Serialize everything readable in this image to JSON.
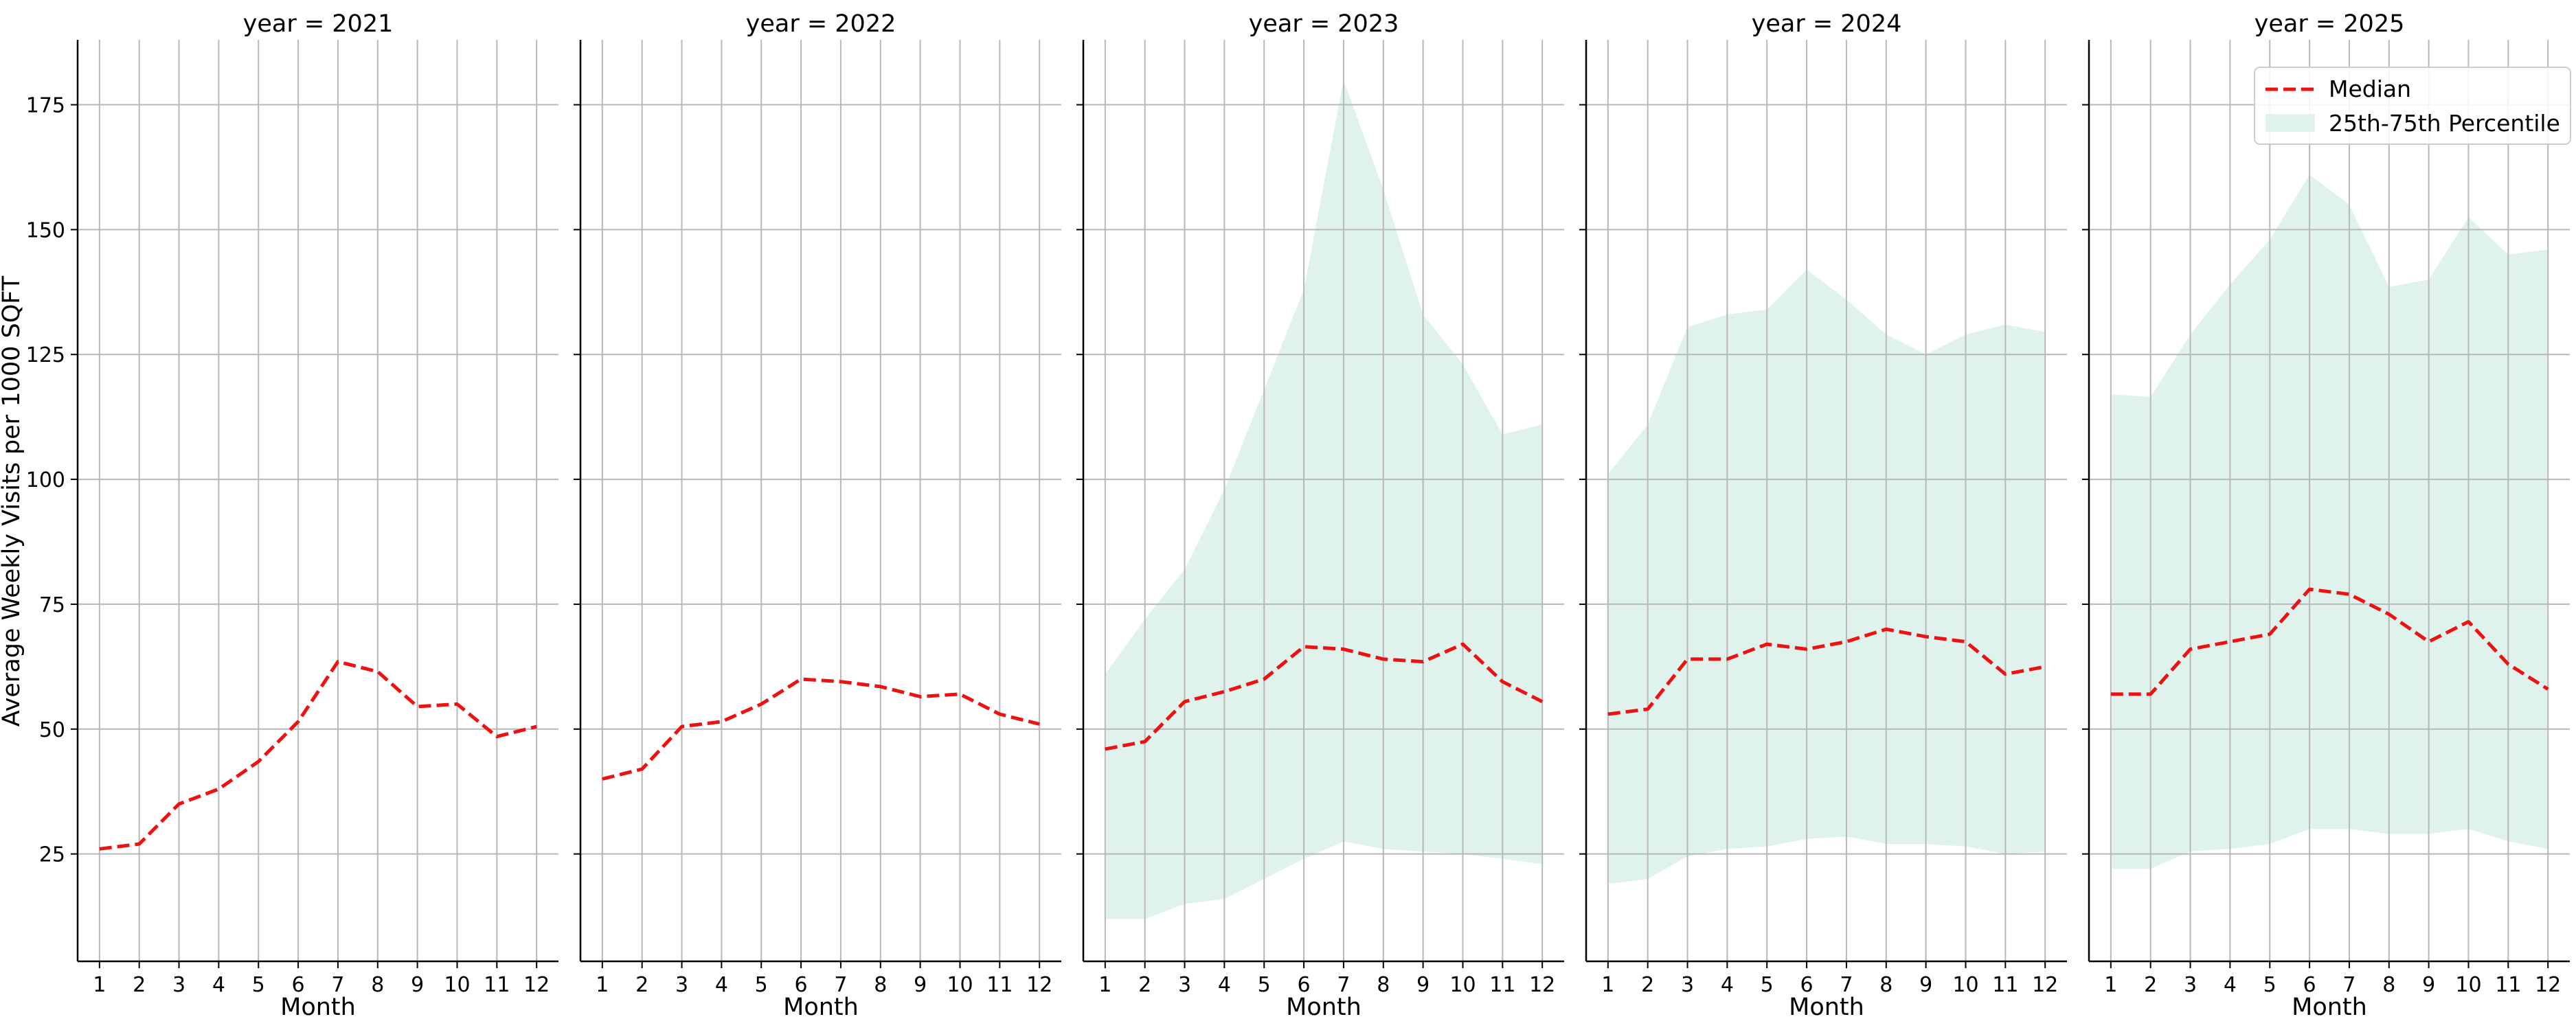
{
  "chart_data": {
    "type": "line",
    "ylabel": "Average Weekly Visits per 1000 SQFT",
    "xlabel": "Month",
    "ylim": [
      3.5,
      188
    ],
    "xlim": [
      0.45,
      12.55
    ],
    "yticks": [
      25,
      50,
      75,
      100,
      125,
      150,
      175
    ],
    "xticks": [
      1,
      2,
      3,
      4,
      5,
      6,
      7,
      8,
      9,
      10,
      11,
      12
    ],
    "grid": true,
    "legend": {
      "placement": "upper right of the 2025 panel",
      "median_label": "Median",
      "band_label": "25th-75th Percentile"
    },
    "colors": {
      "median": "#ee1111",
      "band": "#dff2ec",
      "grid": "#b8b8b8",
      "axis": "#000000"
    },
    "panels": [
      {
        "title": "year = 2021",
        "median": [
          26,
          27,
          35,
          38,
          43.5,
          51.5,
          63.5,
          61.5,
          54.5,
          55,
          48.5,
          50.5
        ],
        "p25": null,
        "p75": null
      },
      {
        "title": "year = 2022",
        "median": [
          40,
          42,
          50.5,
          51.5,
          55,
          60,
          59.5,
          58.5,
          56.5,
          57,
          53,
          51
        ],
        "p25": null,
        "p75": null
      },
      {
        "title": "year = 2023",
        "median": [
          46,
          47.5,
          55.5,
          57.5,
          60,
          66.5,
          66,
          64,
          63.5,
          67,
          59.5,
          55.5
        ],
        "p25": [
          12,
          12,
          15,
          16,
          20,
          24,
          27.5,
          26,
          25.5,
          25,
          24,
          23
        ],
        "p75": [
          61,
          72,
          82,
          98,
          118,
          138,
          180,
          158,
          133,
          123,
          109,
          111
        ]
      },
      {
        "title": "year = 2024",
        "median": [
          53,
          54,
          64,
          64,
          67,
          66,
          67.5,
          70,
          68.5,
          67.5,
          61,
          62.5
        ],
        "p25": [
          19,
          20,
          24.5,
          26,
          26.5,
          28,
          28.5,
          27,
          27,
          26.5,
          25,
          25.5
        ],
        "p75": [
          101,
          111,
          130.5,
          133,
          134,
          142,
          136,
          129,
          125,
          129,
          131,
          129.5
        ]
      },
      {
        "title": "year = 2025",
        "median": [
          57,
          57,
          66,
          67.5,
          69,
          78,
          77,
          73,
          67.5,
          71.5,
          63,
          58
        ],
        "p25": [
          22,
          22,
          25.5,
          26,
          27,
          30,
          30,
          29,
          29,
          30,
          27.5,
          26
        ],
        "p75": [
          117,
          116.5,
          129,
          139,
          148,
          161,
          155,
          138.5,
          140,
          152.5,
          145,
          146
        ]
      }
    ]
  }
}
